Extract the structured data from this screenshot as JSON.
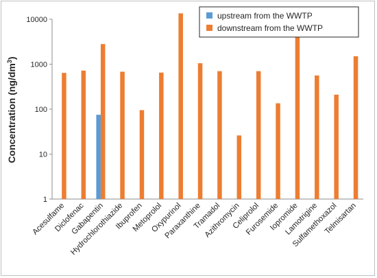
{
  "chart_data": {
    "type": "bar",
    "ylabel_prefix": "Concentration (ng/dm",
    "ylabel_sup": "3",
    "ylabel_suffix": ")",
    "y_scale": "log",
    "ylim": [
      1,
      10000
    ],
    "y_ticks": [
      "1",
      "10",
      "100",
      "1000",
      "10000"
    ],
    "grid": false,
    "legend_position": "top-right",
    "categories": [
      "Acesulfame",
      "Diclofenac",
      "Gabapentin",
      "Hydrochlorothiazide",
      "Ibuprofen",
      "Metoprolol",
      "Oxypurinol",
      "Paraxanthine",
      "Tramadol",
      "Azithromycin",
      "Celiprolol",
      "Furosemide",
      "Iopromide",
      "Lamotrigine",
      "Sulfamethoxazol",
      "Telmisartan"
    ],
    "series": [
      {
        "name": "upstream from the WWTP",
        "color": "#5B9BD5",
        "values": [
          null,
          null,
          75,
          null,
          null,
          null,
          null,
          null,
          null,
          null,
          null,
          null,
          null,
          null,
          null,
          null
        ]
      },
      {
        "name": "downstream from the WWTP",
        "color": "#ED7D31",
        "values": [
          640,
          720,
          2800,
          680,
          95,
          650,
          13500,
          1050,
          700,
          26,
          700,
          135,
          4100,
          560,
          210,
          1500
        ]
      }
    ]
  }
}
